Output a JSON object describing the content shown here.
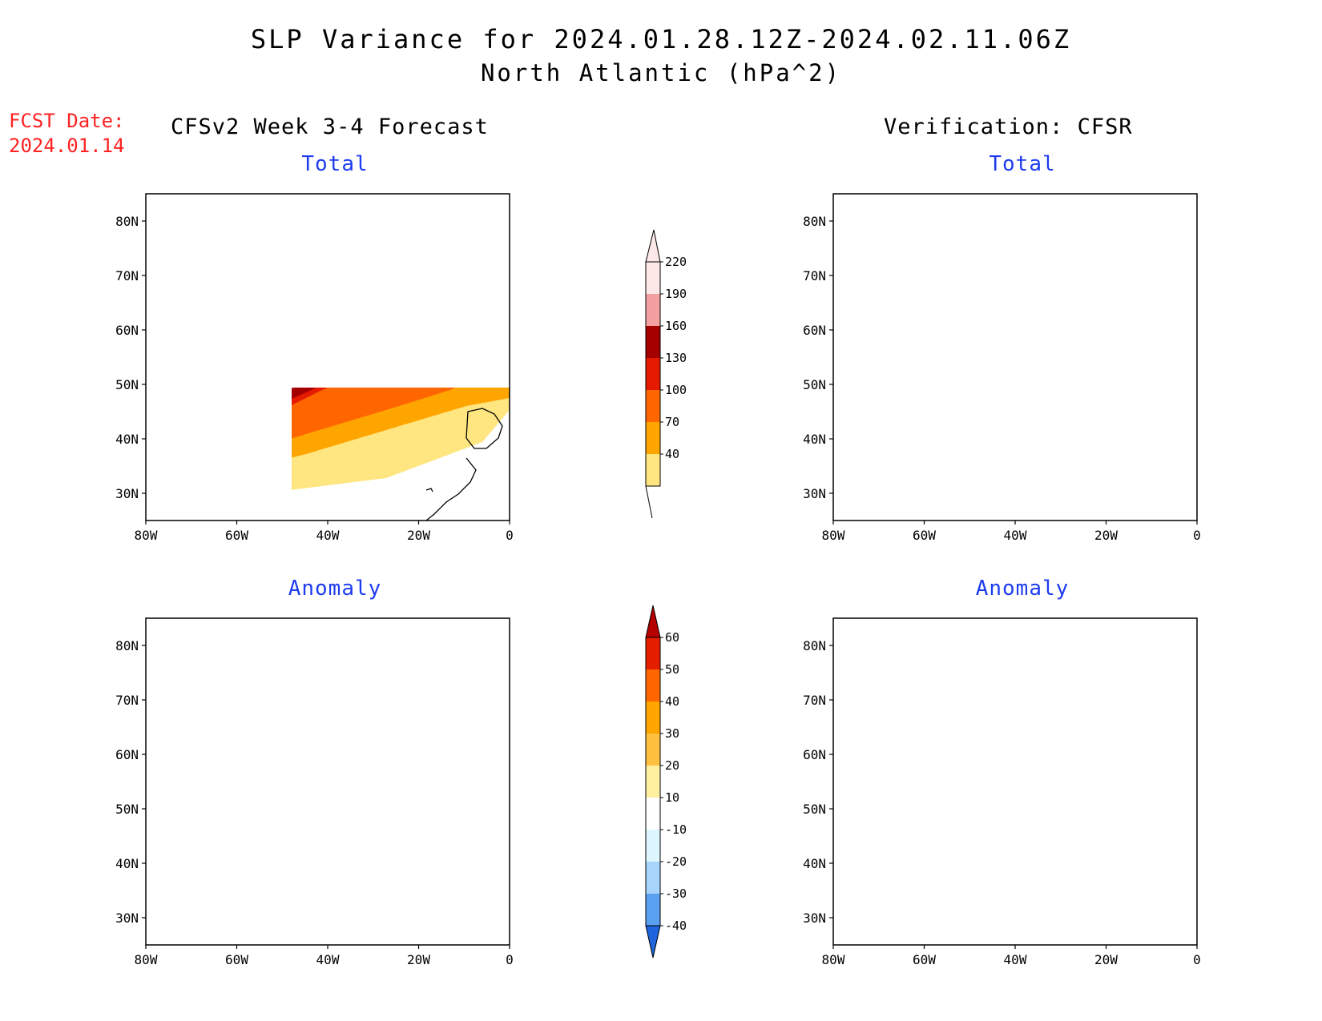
{
  "header": {
    "title": "SLP Variance for 2024.01.28.12Z-2024.02.11.06Z",
    "subtitle": "North Atlantic (hPa^2)",
    "fcst_label": "FCST Date:",
    "fcst_date": "2024.01.14",
    "left_heading": "CFSv2 Week 3-4 Forecast",
    "right_heading": "Verification: CFSR"
  },
  "panels": [
    {
      "id": "forecast-total",
      "title": "Total"
    },
    {
      "id": "verification-total",
      "title": "Total"
    },
    {
      "id": "forecast-anomaly",
      "title": "Anomaly"
    },
    {
      "id": "verification-anomaly",
      "title": "Anomaly"
    }
  ],
  "axes": {
    "lon_ticks": [
      -80,
      -60,
      -40,
      -20,
      0
    ],
    "lon_labels": [
      "80W",
      "60W",
      "40W",
      "20W",
      "0"
    ],
    "lat_ticks": [
      80,
      70,
      60,
      50,
      40,
      30
    ],
    "lat_labels": [
      "80N",
      "70N",
      "60N",
      "50N",
      "40N",
      "30N"
    ],
    "lon_range": [
      -80,
      0
    ],
    "lat_range": [
      25,
      85
    ]
  },
  "colorbars": {
    "total": {
      "levels": [
        "40",
        "70",
        "100",
        "130",
        "160",
        "190",
        "220"
      ],
      "colors": [
        "#ffe680",
        "#ffa500",
        "#ff6600",
        "#e61a00",
        "#a50000",
        "#f4a0a0",
        "#fde8e8"
      ]
    },
    "anomaly": {
      "levels": [
        "60",
        "50",
        "40",
        "30",
        "20",
        "10",
        "-10",
        "-20",
        "-30",
        "-40"
      ],
      "colors_top_down": [
        "#b40000",
        "#e61e00",
        "#ff6600",
        "#ffa500",
        "#ffc040",
        "#fff0a0",
        "#ffffff",
        "#ddf6ff",
        "#a6d4fa",
        "#5aa0f0",
        "#1e64dc"
      ]
    }
  }
}
